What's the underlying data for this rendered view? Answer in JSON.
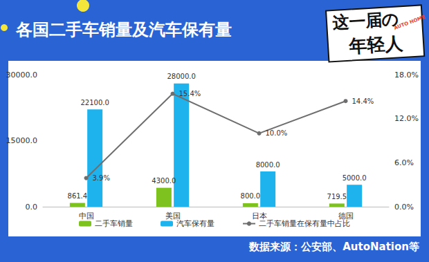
{
  "chart_data": {
    "type": "bar",
    "title": "各国二手车销量及汽车保有量",
    "annotations": {
      "logo": [
        "这一届の",
        "年轻人"
      ],
      "logo_sub": "AUTO HOME",
      "source": "数据来源：公安部、AutoNation等"
    },
    "categories": [
      "中国",
      "美国",
      "日本",
      "德国"
    ],
    "series": [
      {
        "name": "二手车销量",
        "type": "bar",
        "color": "#7dc21e",
        "values": [
          861.4,
          4300,
          800,
          719.5
        ],
        "value_labels": [
          "861.4",
          "4300.0",
          "800.0",
          "719.5"
        ]
      },
      {
        "name": "汽车保有量",
        "type": "bar",
        "color": "#1fb3ee",
        "values": [
          22100,
          28000,
          8000,
          5000
        ],
        "value_labels": [
          "22100.0",
          "28000.0",
          "8000.0",
          "5000.0"
        ]
      },
      {
        "name": "二手车销量在保有量中占比",
        "type": "line",
        "axis": "y2",
        "color": "#6e6e6e",
        "marker": "circle",
        "line_style": "solid",
        "values": [
          3.9,
          15.4,
          10.0,
          14.4
        ],
        "value_labels": [
          "3.9%",
          "15.4%",
          "10.0%",
          "14.4%"
        ]
      }
    ],
    "ylim": [
      0,
      30000
    ],
    "yticks": [
      {
        "value": 0,
        "label": "0.0"
      },
      {
        "value": 15000,
        "label": "15000.0"
      },
      {
        "value": 30000,
        "label": "30000.0"
      }
    ],
    "y2lim": [
      0,
      18
    ],
    "y2ticks": [
      {
        "value": 0,
        "label": "0.0%"
      },
      {
        "value": 6,
        "label": "6.0%"
      },
      {
        "value": 12,
        "label": "12.0%"
      },
      {
        "value": 18,
        "label": "18.0%"
      }
    ],
    "grid": false,
    "legend": "bottom",
    "data_labels": true
  }
}
